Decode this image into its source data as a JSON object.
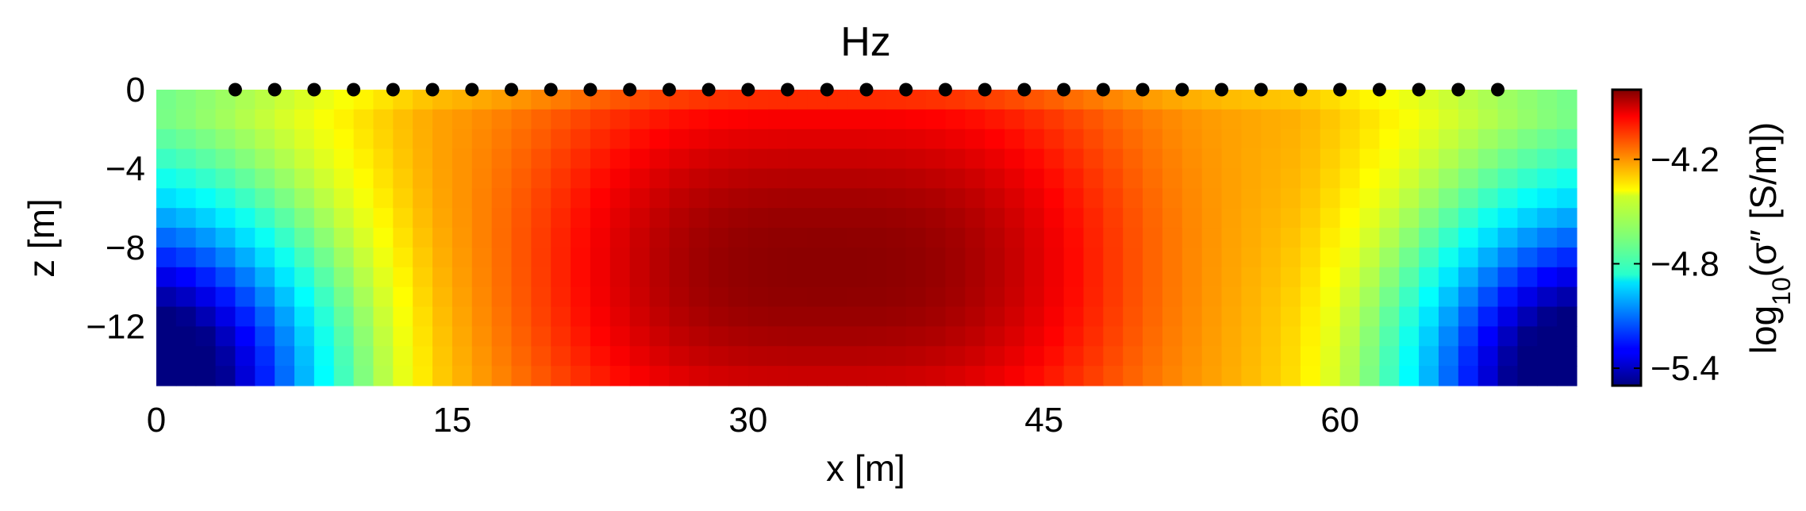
{
  "chart_data": {
    "type": "heatmap",
    "title": "Hz",
    "xlabel": "x [m]",
    "ylabel": "z [m]",
    "xlim": [
      0,
      72
    ],
    "ylim": [
      -15,
      0
    ],
    "x_ticks": [
      0,
      15,
      30,
      45,
      60
    ],
    "x_tick_labels": [
      "0",
      "15",
      "30",
      "45",
      "60"
    ],
    "y_ticks": [
      0,
      -4,
      -8,
      -12
    ],
    "y_tick_labels": [
      "0",
      "−4",
      "−8",
      "−12"
    ],
    "colormap": "jet",
    "colorbar": {
      "label": "log10(σ″ [S/m])",
      "label_parts": {
        "prefix": "log",
        "subscript": "10",
        "suffix": "(σ″ [S/m])"
      },
      "range": [
        -5.5,
        -3.8
      ],
      "ticks": [
        -4.2,
        -4.8,
        -5.4
      ],
      "tick_labels": [
        "−4.2",
        "−4.8",
        "−5.4"
      ]
    },
    "field": {
      "background_value": -4.3,
      "anomaly": {
        "center_x": 34,
        "center_z": -9,
        "peak_value": -3.82,
        "half_width_x": 15,
        "half_height_z": 8
      },
      "low_zones": [
        {
          "center_x": 0,
          "center_z": -15,
          "min_value": -5.5
        },
        {
          "center_x": 72,
          "center_z": -15,
          "min_value": -5.5
        }
      ],
      "cell_size_m": 1
    },
    "electrodes": {
      "z": 0,
      "x": [
        4,
        6,
        8,
        10,
        12,
        14,
        16,
        18,
        20,
        22,
        24,
        26,
        28,
        30,
        32,
        34,
        36,
        38,
        40,
        42,
        44,
        46,
        48,
        50,
        52,
        54,
        56,
        58,
        60,
        62,
        64,
        66,
        68
      ],
      "color": "#000000"
    }
  }
}
